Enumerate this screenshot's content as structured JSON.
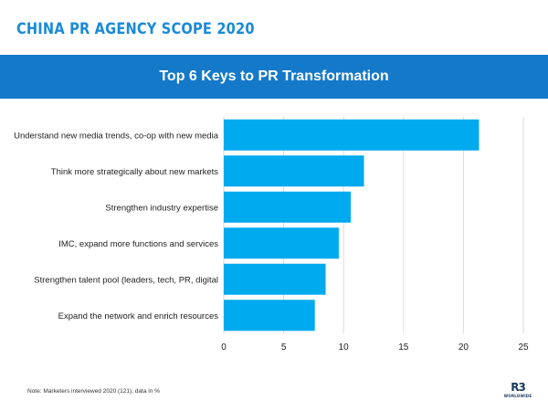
{
  "header": {
    "brand_title": "CHINA PR AGENCY SCOPE 2020",
    "banner_title": "Top 6 Keys to PR Transformation"
  },
  "chart_data": {
    "type": "bar",
    "orientation": "horizontal",
    "title": "Top 6 Keys to PR Transformation",
    "xlabel": "",
    "ylabel": "",
    "categories": [
      "Understand new media trends, co-op with new media",
      "Think more strategically about new markets",
      "Strengthen industry expertise",
      "IMC, expand more functions and services",
      "Strengthen talent pool (leaders, tech, PR, digital",
      "Expand the network and enrich resources"
    ],
    "values": [
      21.3,
      11.7,
      10.6,
      9.6,
      8.5,
      7.6
    ],
    "xlim": [
      0,
      25
    ],
    "xticks": [
      0,
      5,
      10,
      15,
      20,
      25
    ],
    "grid": "vertical",
    "legend": "none",
    "bar_color": "#00aaee"
  },
  "footer": {
    "note": "Note: Marketers interviewed 2020 (121), data in %",
    "logo_mark": "R3",
    "logo_sub": "WORLDWIDE"
  },
  "colors": {
    "brand_blue": "#1a8bd6",
    "banner_blue": "#1479c9",
    "bar_blue": "#00aaee",
    "grid": "#dddddd",
    "logo_navy": "#17385f"
  }
}
